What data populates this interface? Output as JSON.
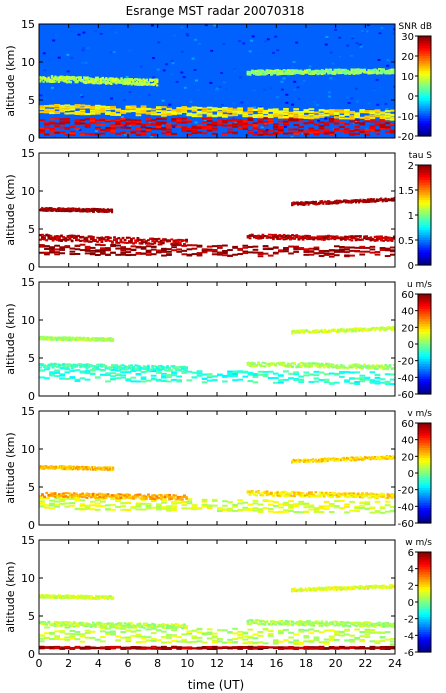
{
  "figure": {
    "title": "Esrange MST radar 20070318",
    "xlabel": "time (UT)",
    "xticks": [
      "0",
      "2",
      "4",
      "6",
      "8",
      "10",
      "12",
      "14",
      "16",
      "18",
      "20",
      "22",
      "24"
    ]
  },
  "chart_data": [
    {
      "type": "heatmap",
      "ylabel": "altitude (km)",
      "xlim": [
        0,
        24
      ],
      "ylim": [
        0,
        15
      ],
      "yticks": [
        "0",
        "5",
        "10",
        "15"
      ],
      "colorbar": {
        "label": "SNR dB",
        "range": [
          -20,
          30
        ],
        "ticks": [
          "30",
          "20",
          "10",
          "0",
          "-10",
          "-20"
        ]
      },
      "colormap": "jet",
      "coverage": "full",
      "layers": [
        {
          "x": [
            0,
            24
          ],
          "y_center": [
            1.5,
            1.5
          ],
          "thickness": 2.2,
          "value": 25
        },
        {
          "x": [
            0,
            24
          ],
          "y_center": [
            3.8,
            3.0
          ],
          "thickness": 1.2,
          "value": 12
        },
        {
          "x": [
            0,
            8
          ],
          "y_center": [
            7.8,
            7.3
          ],
          "thickness": 0.8,
          "value": 8
        },
        {
          "x": [
            14,
            24
          ],
          "y_center": [
            8.6,
            8.8
          ],
          "thickness": 0.6,
          "value": 6
        }
      ]
    },
    {
      "type": "heatmap",
      "ylabel": "altitude (km)",
      "xlim": [
        0,
        24
      ],
      "ylim": [
        0,
        15
      ],
      "yticks": [
        "0",
        "5",
        "10",
        "15"
      ],
      "colorbar": {
        "label": "tau S",
        "range": [
          0,
          2
        ],
        "ticks": [
          "2",
          "1.5",
          "1",
          "0.5",
          "0"
        ]
      },
      "colormap": "jet",
      "coverage": "sparse",
      "layers": [
        {
          "x": [
            0,
            24
          ],
          "y_center": [
            2.3,
            2.0
          ],
          "thickness": 1.4,
          "value": 1.95
        },
        {
          "x": [
            0,
            10
          ],
          "y_center": [
            3.9,
            3.2
          ],
          "thickness": 0.8,
          "value": 1.9
        },
        {
          "x": [
            14,
            24
          ],
          "y_center": [
            4.0,
            3.7
          ],
          "thickness": 0.6,
          "value": 1.9
        },
        {
          "x": [
            0,
            5
          ],
          "y_center": [
            7.6,
            7.4
          ],
          "thickness": 0.4,
          "value": 1.95
        },
        {
          "x": [
            17,
            24
          ],
          "y_center": [
            8.3,
            8.9
          ],
          "thickness": 0.4,
          "value": 1.95
        }
      ]
    },
    {
      "type": "heatmap",
      "ylabel": "altitude (km)",
      "xlim": [
        0,
        24
      ],
      "ylim": [
        0,
        15
      ],
      "yticks": [
        "0",
        "5",
        "10",
        "15"
      ],
      "colorbar": {
        "label": "u m/s",
        "range": [
          -60,
          60
        ],
        "ticks": [
          "60",
          "40",
          "20",
          "0",
          "-20",
          "-40",
          "-60"
        ]
      },
      "colormap": "jet",
      "coverage": "sparse",
      "layers": [
        {
          "x": [
            0,
            24
          ],
          "y_center": [
            2.8,
            2.3
          ],
          "thickness": 1.6,
          "value": -10
        },
        {
          "x": [
            0,
            10
          ],
          "y_center": [
            4.0,
            3.6
          ],
          "thickness": 0.6,
          "value": -8
        },
        {
          "x": [
            14,
            24
          ],
          "y_center": [
            4.2,
            3.8
          ],
          "thickness": 0.6,
          "value": 5
        },
        {
          "x": [
            0,
            5
          ],
          "y_center": [
            7.6,
            7.4
          ],
          "thickness": 0.4,
          "value": 5
        },
        {
          "x": [
            17,
            24
          ],
          "y_center": [
            8.4,
            8.9
          ],
          "thickness": 0.4,
          "value": 10
        }
      ]
    },
    {
      "type": "heatmap",
      "ylabel": "altitude (km)",
      "xlim": [
        0,
        24
      ],
      "ylim": [
        0,
        15
      ],
      "yticks": [
        "0",
        "5",
        "10",
        "15"
      ],
      "colorbar": {
        "label": "v m/s",
        "range": [
          -60,
          60
        ],
        "ticks": [
          "60",
          "40",
          "20",
          "0",
          "-20",
          "-40",
          "-60"
        ]
      },
      "colormap": "jet",
      "coverage": "sparse",
      "layers": [
        {
          "x": [
            0,
            24
          ],
          "y_center": [
            2.8,
            2.3
          ],
          "thickness": 1.6,
          "value": 10
        },
        {
          "x": [
            0,
            10
          ],
          "y_center": [
            4.0,
            3.6
          ],
          "thickness": 0.6,
          "value": 25
        },
        {
          "x": [
            14,
            24
          ],
          "y_center": [
            4.2,
            3.8
          ],
          "thickness": 0.6,
          "value": 18
        },
        {
          "x": [
            0,
            5
          ],
          "y_center": [
            7.6,
            7.4
          ],
          "thickness": 0.4,
          "value": 22
        },
        {
          "x": [
            17,
            24
          ],
          "y_center": [
            8.4,
            8.9
          ],
          "thickness": 0.4,
          "value": 20
        }
      ]
    },
    {
      "type": "heatmap",
      "ylabel": "altitude (km)",
      "xlim": [
        0,
        24
      ],
      "ylim": [
        0,
        15
      ],
      "yticks": [
        "0",
        "5",
        "10",
        "15"
      ],
      "colorbar": {
        "label": "w m/s",
        "range": [
          -6,
          6
        ],
        "ticks": [
          "6",
          "4",
          "2",
          "0",
          "-2",
          "-4",
          "-6"
        ]
      },
      "colormap": "jet",
      "coverage": "sparse",
      "layers": [
        {
          "x": [
            0,
            24
          ],
          "y_center": [
            2.6,
            2.2
          ],
          "thickness": 2.0,
          "value": 0.8
        },
        {
          "x": [
            0,
            10
          ],
          "y_center": [
            4.0,
            3.6
          ],
          "thickness": 0.6,
          "value": 0.6
        },
        {
          "x": [
            14,
            24
          ],
          "y_center": [
            4.2,
            3.8
          ],
          "thickness": 0.6,
          "value": 0.5
        },
        {
          "x": [
            0,
            5
          ],
          "y_center": [
            7.6,
            7.4
          ],
          "thickness": 0.4,
          "value": 1.0
        },
        {
          "x": [
            17,
            24
          ],
          "y_center": [
            8.4,
            8.9
          ],
          "thickness": 0.4,
          "value": 1.2
        },
        {
          "x": [
            0,
            24
          ],
          "y_center": [
            0.8,
            0.8
          ],
          "thickness": 0.3,
          "value": 5.5
        }
      ]
    }
  ]
}
